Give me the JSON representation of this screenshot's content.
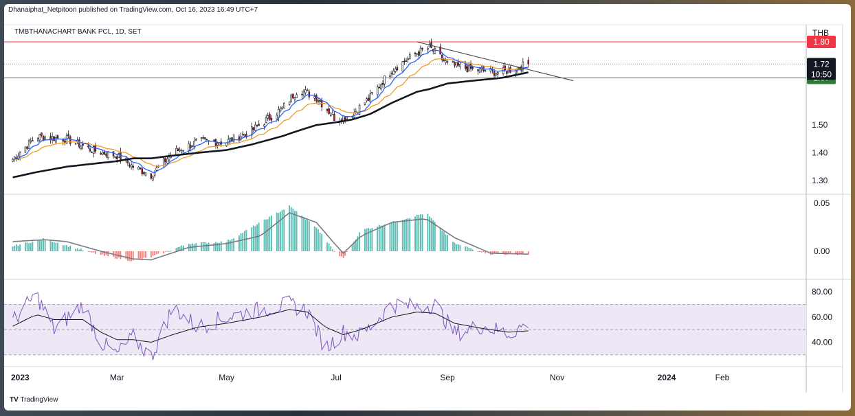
{
  "header": {
    "publisher": "Dhanaiphat_Netpitoon published on TradingView.com, Oct 16, 2023 16:49 UTC+7",
    "symbol": "TMBTHANACHART BANK PCL, 1D, SET",
    "currency": "THB",
    "brand": "TradingView",
    "brand_mark": "TV"
  },
  "colors": {
    "up_candle": "#ffffff",
    "down_candle": "#b2202c",
    "ema_fast": "#2962ff",
    "ema_slow": "#f19a26",
    "sma_long": "#131722",
    "resistance": "#f23645",
    "support": "#2e7d32",
    "hist_pos": "#26a69a",
    "hist_neg": "#ef5350",
    "rsi": "#7e57c2",
    "rsi_band": "#ede7f6"
  },
  "chart_data": [
    {
      "type": "line",
      "name": "price",
      "y_ticks": [
        "1.30",
        "1.40",
        "1.50"
      ],
      "x_ticks": [
        "2023",
        "Mar",
        "May",
        "Jul",
        "Sep",
        "Nov",
        "2024",
        "Feb"
      ],
      "ylim": [
        1.27,
        1.83
      ],
      "x": [
        "2023-01-01",
        "2023-01-15",
        "2023-02-01",
        "2023-02-15",
        "2023-03-01",
        "2023-03-10",
        "2023-03-20",
        "2023-04-01",
        "2023-04-15",
        "2023-05-01",
        "2023-05-15",
        "2023-06-01",
        "2023-06-10",
        "2023-06-20",
        "2023-07-01",
        "2023-07-10",
        "2023-07-20",
        "2023-08-01",
        "2023-08-15",
        "2023-08-22",
        "2023-09-01",
        "2023-09-15",
        "2023-10-01",
        "2023-10-16"
      ],
      "close": [
        1.37,
        1.46,
        1.45,
        1.41,
        1.39,
        1.35,
        1.32,
        1.4,
        1.44,
        1.44,
        1.48,
        1.56,
        1.63,
        1.6,
        1.52,
        1.54,
        1.6,
        1.7,
        1.76,
        1.78,
        1.72,
        1.7,
        1.69,
        1.72
      ],
      "sma_long": [
        1.31,
        1.33,
        1.35,
        1.36,
        1.37,
        1.38,
        1.38,
        1.39,
        1.4,
        1.41,
        1.43,
        1.46,
        1.48,
        1.5,
        1.51,
        1.52,
        1.54,
        1.58,
        1.62,
        1.63,
        1.65,
        1.66,
        1.67,
        1.69
      ],
      "levels": {
        "resistance": "1.80",
        "last_price": "1.72",
        "countdown": "10:50",
        "support": "1.67"
      },
      "trendline": {
        "from": [
          "2023-08-15",
          1.8
        ],
        "to": [
          "2023-11-10",
          1.66
        ]
      }
    },
    {
      "type": "bar",
      "name": "histogram",
      "y_ticks": [
        "0.05",
        "0.00"
      ],
      "ylim": [
        -0.02,
        0.05
      ],
      "x": [
        "2023-01-01",
        "2023-01-20",
        "2023-02-01",
        "2023-02-20",
        "2023-03-10",
        "2023-03-20",
        "2023-04-10",
        "2023-05-01",
        "2023-05-20",
        "2023-06-05",
        "2023-06-20",
        "2023-07-01",
        "2023-07-05",
        "2023-07-15",
        "2023-08-01",
        "2023-08-20",
        "2023-09-05",
        "2023-09-25",
        "2023-10-16"
      ],
      "values": [
        0.005,
        0.013,
        0.006,
        -0.004,
        -0.01,
        -0.006,
        0.008,
        0.01,
        0.03,
        0.047,
        0.025,
        -0.003,
        -0.007,
        0.022,
        0.03,
        0.04,
        0.008,
        -0.003,
        -0.003
      ],
      "signal": [
        0.01,
        0.012,
        0.01,
        0.0,
        -0.008,
        -0.009,
        0.004,
        0.008,
        0.016,
        0.04,
        0.03,
        0.006,
        -0.002,
        0.016,
        0.03,
        0.034,
        0.014,
        -0.002,
        -0.003
      ]
    },
    {
      "type": "line",
      "name": "rsi",
      "y_ticks": [
        "80.00",
        "60.00",
        "40.00"
      ],
      "ylim": [
        25,
        85
      ],
      "bands": [
        70,
        50,
        30
      ],
      "x": [
        "2023-01-01",
        "2023-01-15",
        "2023-01-25",
        "2023-02-10",
        "2023-02-20",
        "2023-03-01",
        "2023-03-10",
        "2023-03-20",
        "2023-04-01",
        "2023-04-15",
        "2023-05-01",
        "2023-05-20",
        "2023-06-05",
        "2023-06-15",
        "2023-06-25",
        "2023-07-05",
        "2023-07-15",
        "2023-08-01",
        "2023-08-15",
        "2023-08-25",
        "2023-09-05",
        "2023-09-20",
        "2023-10-05",
        "2023-10-16"
      ],
      "values": [
        55,
        78,
        50,
        70,
        40,
        30,
        44,
        28,
        68,
        52,
        60,
        66,
        70,
        65,
        35,
        48,
        45,
        70,
        68,
        70,
        47,
        53,
        47,
        55
      ],
      "ma": [
        52,
        62,
        58,
        58,
        48,
        42,
        42,
        40,
        46,
        52,
        55,
        60,
        66,
        64,
        52,
        46,
        50,
        60,
        64,
        63,
        55,
        51,
        48,
        49
      ]
    }
  ]
}
